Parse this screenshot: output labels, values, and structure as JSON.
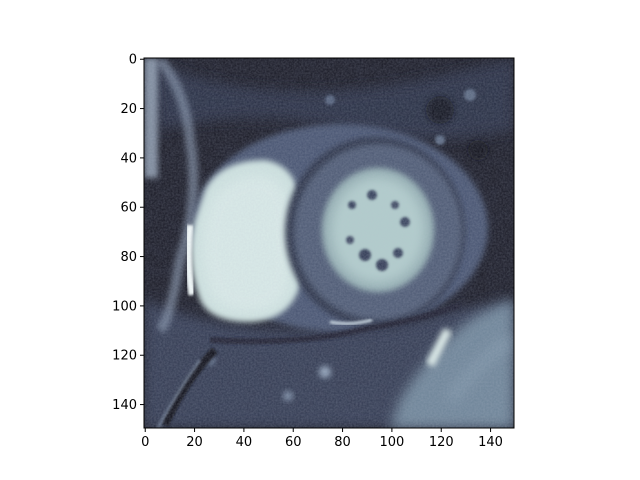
{
  "figure": {
    "image_description": "cardiac MRI short-axis slice in bone colormap",
    "colormap": "bone",
    "colors": {
      "background": "#ffffff",
      "axis": "#000000",
      "image_dark": "#12121f",
      "image_mid": "#5a6a82",
      "image_bright": "#d6eae6"
    },
    "x_axis": {
      "ticks": [
        0,
        20,
        40,
        60,
        80,
        100,
        120,
        140
      ],
      "range": [
        0,
        150
      ]
    },
    "y_axis": {
      "ticks": [
        0,
        20,
        40,
        60,
        80,
        100,
        120,
        140
      ],
      "range": [
        0,
        150
      ],
      "inverted": true
    }
  }
}
